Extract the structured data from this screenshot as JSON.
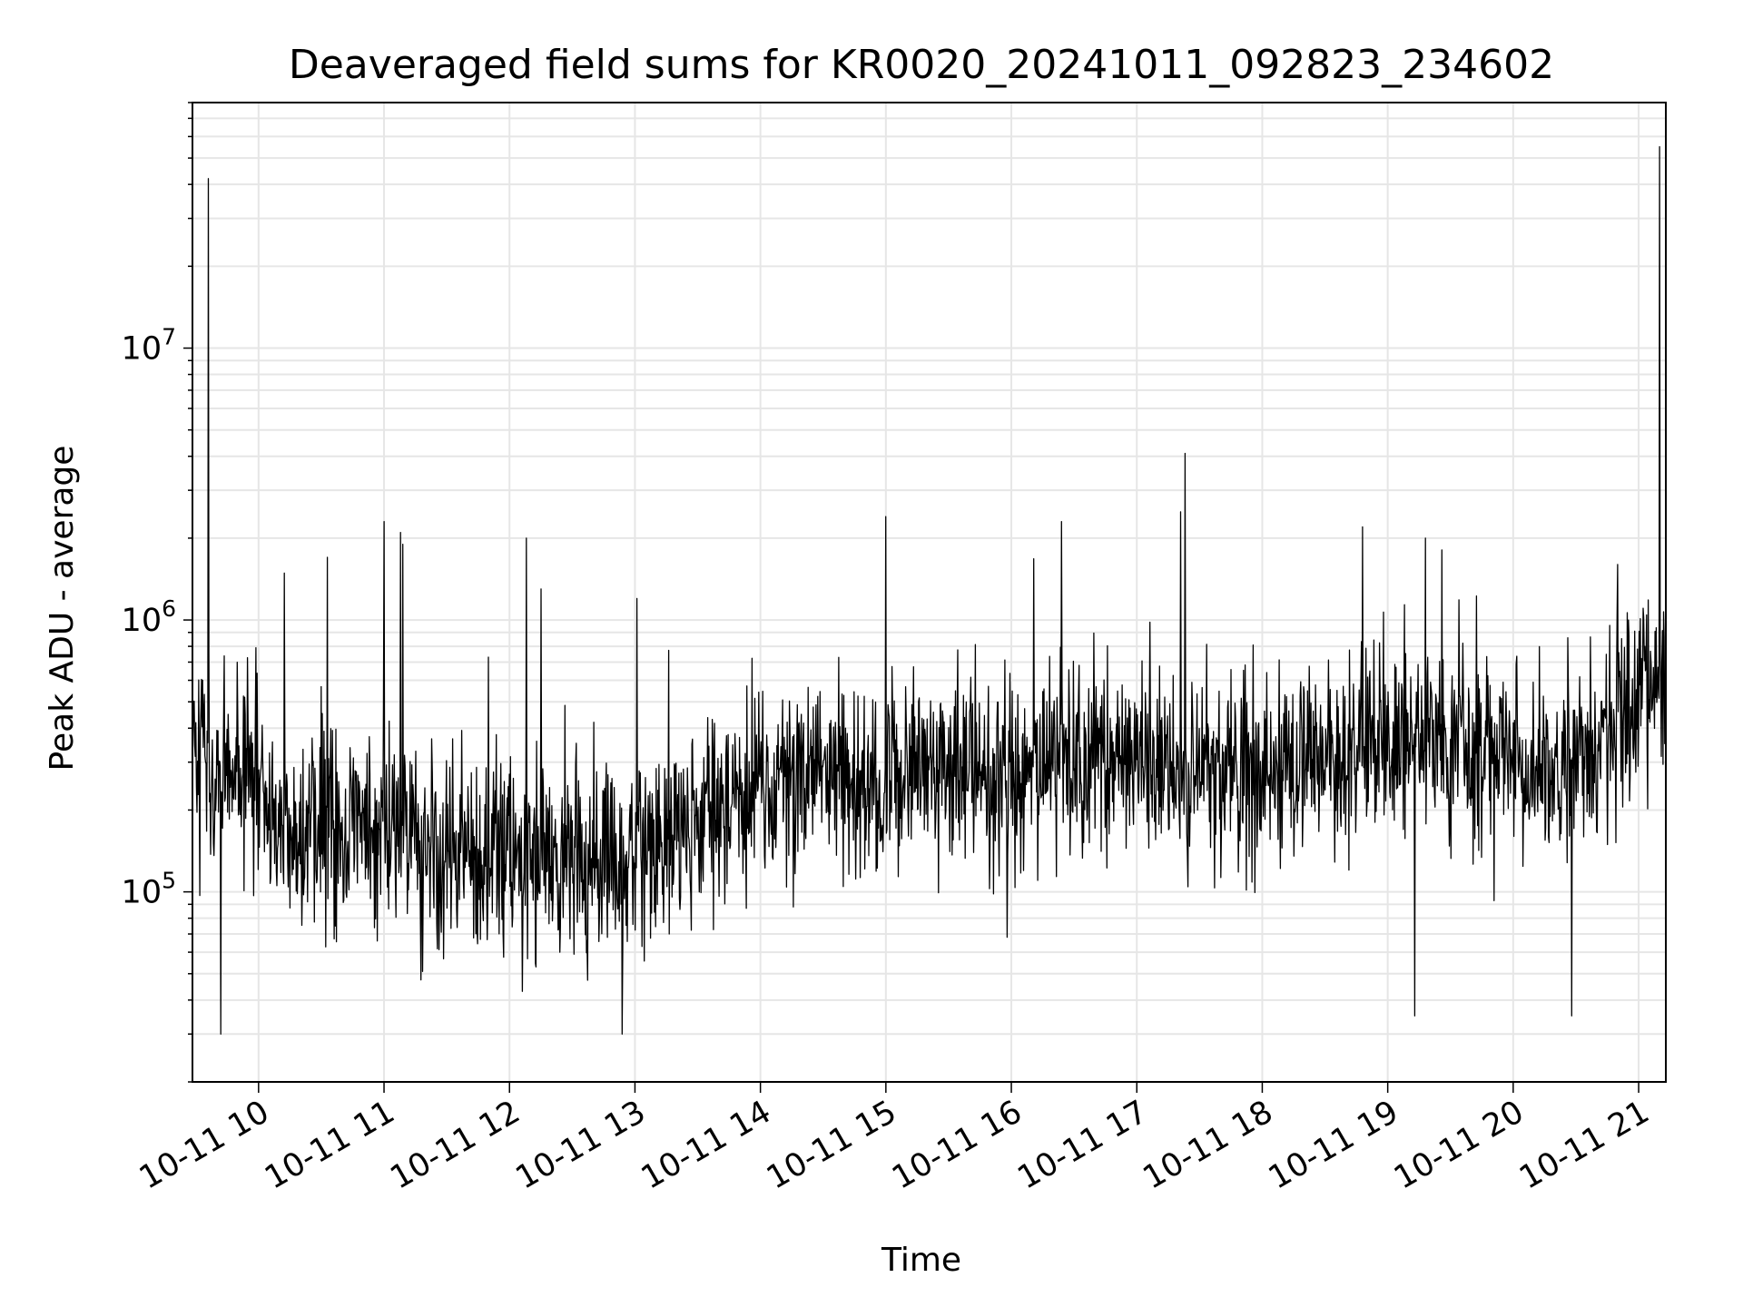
{
  "chart_data": {
    "type": "line",
    "title": "Deaveraged field sums for KR0020_20241011_092823_234602",
    "xlabel": "Time",
    "ylabel": "Peak ADU - average",
    "yscale": "log",
    "ylim": [
      20000,
      80000000
    ],
    "xlim": [
      "2024-10-11 09:28:23",
      "2024-10-11 21:13:00"
    ],
    "grid": true,
    "line_color": "#000000",
    "grid_color": "#e6e6e6",
    "x_ticks": [
      {
        "t": "2024-10-11 10:00",
        "label": "10-11 10"
      },
      {
        "t": "2024-10-11 11:00",
        "label": "10-11 11"
      },
      {
        "t": "2024-10-11 12:00",
        "label": "10-11 12"
      },
      {
        "t": "2024-10-11 13:00",
        "label": "10-11 13"
      },
      {
        "t": "2024-10-11 14:00",
        "label": "10-11 14"
      },
      {
        "t": "2024-10-11 15:00",
        "label": "10-11 15"
      },
      {
        "t": "2024-10-11 16:00",
        "label": "10-11 16"
      },
      {
        "t": "2024-10-11 17:00",
        "label": "10-11 17"
      },
      {
        "t": "2024-10-11 18:00",
        "label": "10-11 18"
      },
      {
        "t": "2024-10-11 19:00",
        "label": "10-11 19"
      },
      {
        "t": "2024-10-11 20:00",
        "label": "10-11 20"
      },
      {
        "t": "2024-10-11 21:00",
        "label": "10-11 21"
      }
    ],
    "y_ticks": [
      {
        "value": 100000,
        "base": "10",
        "exp": "5"
      },
      {
        "value": 1000000,
        "base": "10",
        "exp": "6"
      },
      {
        "value": 10000000,
        "base": "10",
        "exp": "7"
      }
    ],
    "series": [
      {
        "envelope": [
          {
            "t": "2024-10-11 09:28",
            "y": 350000
          },
          {
            "t": "2024-10-11 09:40",
            "y": 250000
          },
          {
            "t": "2024-10-11 09:55",
            "y": 330000
          },
          {
            "t": "2024-10-11 10:05",
            "y": 180000
          },
          {
            "t": "2024-10-11 10:30",
            "y": 170000
          },
          {
            "t": "2024-10-11 11:00",
            "y": 160000
          },
          {
            "t": "2024-10-11 11:30",
            "y": 145000
          },
          {
            "t": "2024-10-11 12:00",
            "y": 135000
          },
          {
            "t": "2024-10-11 12:30",
            "y": 130000
          },
          {
            "t": "2024-10-11 13:00",
            "y": 140000
          },
          {
            "t": "2024-10-11 13:45",
            "y": 190000
          },
          {
            "t": "2024-10-11 14:00",
            "y": 250000
          },
          {
            "t": "2024-10-11 14:30",
            "y": 250000
          },
          {
            "t": "2024-10-11 15:00",
            "y": 270000
          },
          {
            "t": "2024-10-11 15:30",
            "y": 290000
          },
          {
            "t": "2024-10-11 16:00",
            "y": 240000
          },
          {
            "t": "2024-10-11 16:30",
            "y": 330000
          },
          {
            "t": "2024-10-11 17:00",
            "y": 300000
          },
          {
            "t": "2024-10-11 17:30",
            "y": 280000
          },
          {
            "t": "2024-10-11 18:00",
            "y": 280000
          },
          {
            "t": "2024-10-11 18:30",
            "y": 300000
          },
          {
            "t": "2024-10-11 19:00",
            "y": 330000
          },
          {
            "t": "2024-10-11 19:30",
            "y": 400000
          },
          {
            "t": "2024-10-11 20:00",
            "y": 300000
          },
          {
            "t": "2024-10-11 20:30",
            "y": 300000
          },
          {
            "t": "2024-10-11 21:00",
            "y": 500000
          },
          {
            "t": "2024-10-11 21:13",
            "y": 600000
          }
        ],
        "spikes": [
          {
            "t": "2024-10-11 09:36",
            "y": 42000000
          },
          {
            "t": "2024-10-11 09:42",
            "y": 30000
          },
          {
            "t": "2024-10-11 10:33",
            "y": 1700000
          },
          {
            "t": "2024-10-11 11:00",
            "y": 2300000
          },
          {
            "t": "2024-10-11 11:08",
            "y": 2100000
          },
          {
            "t": "2024-10-11 11:09",
            "y": 1900000
          },
          {
            "t": "2024-10-11 11:50",
            "y": 730000
          },
          {
            "t": "2024-10-11 12:08",
            "y": 2000000
          },
          {
            "t": "2024-10-11 12:15",
            "y": 1300000
          },
          {
            "t": "2024-10-11 12:54",
            "y": 30000
          },
          {
            "t": "2024-10-11 13:01",
            "y": 1200000
          },
          {
            "t": "2024-10-11 15:00",
            "y": 2400000
          },
          {
            "t": "2024-10-11 16:24",
            "y": 2300000
          },
          {
            "t": "2024-10-11 17:23",
            "y": 4100000
          },
          {
            "t": "2024-10-11 17:21",
            "y": 2500000
          },
          {
            "t": "2024-10-11 18:48",
            "y": 2200000
          },
          {
            "t": "2024-10-11 19:13",
            "y": 35000
          },
          {
            "t": "2024-10-11 19:18",
            "y": 2000000
          },
          {
            "t": "2024-10-11 20:28",
            "y": 35000
          },
          {
            "t": "2024-10-11 20:50",
            "y": 1600000
          },
          {
            "t": "2024-10-11 21:10",
            "y": 55000000
          }
        ]
      }
    ]
  }
}
